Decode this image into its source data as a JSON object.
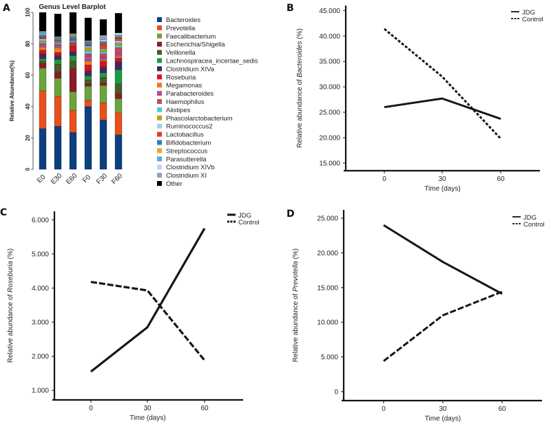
{
  "chart_data": [
    {
      "panel": "A",
      "type": "bar",
      "stacked": true,
      "title": "Genus Level Barplot",
      "xlabel": "",
      "ylabel": "Relative Abundance(%)",
      "ylim": [
        0,
        100
      ],
      "yticks": [
        "0",
        "20",
        "40",
        "60",
        "80",
        "100"
      ],
      "categories": [
        "E0",
        "E30",
        "E60",
        "F0",
        "F30",
        "F60"
      ],
      "legend_position": "right",
      "series": [
        {
          "name": "Bacteroides",
          "color": "#0b3f7f",
          "values": [
            26,
            27.5,
            23.5,
            40,
            31.5,
            22
          ]
        },
        {
          "name": "Prevotella",
          "color": "#e8501a",
          "values": [
            24,
            19,
            14,
            4,
            11,
            14
          ]
        },
        {
          "name": "Faecalibacterium",
          "color": "#6aa43a",
          "values": [
            14.5,
            11.5,
            12,
            9,
            11,
            9
          ]
        },
        {
          "name": "Escherichia/Shigella",
          "color": "#8b1a2a",
          "values": [
            3,
            4,
            14.5,
            1.5,
            1.5,
            3
          ]
        },
        {
          "name": "Veillonella",
          "color": "#4a5a2a",
          "values": [
            1.5,
            5,
            5,
            2.5,
            3.5,
            6.5
          ]
        },
        {
          "name": "Lachnospiracea_incertae_sedis",
          "color": "#1e9a40",
          "values": [
            1.5,
            3,
            3.5,
            2.5,
            3,
            9
          ]
        },
        {
          "name": "Clostridium XIVa",
          "color": "#3d2a63",
          "values": [
            3,
            2.5,
            2.5,
            3,
            3.5,
            5
          ]
        },
        {
          "name": "Roseburia",
          "color": "#d4141e",
          "values": [
            2.5,
            2,
            4,
            4,
            4,
            2.5
          ]
        },
        {
          "name": "Megamonas",
          "color": "#ef7a22",
          "values": [
            2,
            3,
            0.5,
            2.5,
            1,
            1
          ]
        },
        {
          "name": "Parabacteroides",
          "color": "#b14ca0",
          "values": [
            1.5,
            1.5,
            0.5,
            3,
            1.5,
            2
          ]
        },
        {
          "name": "Haemophilus",
          "color": "#c9475e",
          "values": [
            0.5,
            0.5,
            0.5,
            1.5,
            2,
            3.5
          ]
        },
        {
          "name": "Alistipes",
          "color": "#5ec3d8",
          "values": [
            1,
            1,
            0.5,
            2,
            1.5,
            1.5
          ]
        },
        {
          "name": "Phascolarctobacterium",
          "color": "#bfa21a",
          "values": [
            1,
            0.5,
            0.5,
            2,
            1.5,
            1.5
          ]
        },
        {
          "name": "Ruminococcus2",
          "color": "#a9cde8",
          "values": [
            1,
            0.5,
            0.5,
            1,
            0.5,
            1.5
          ]
        },
        {
          "name": "Lactobacillus",
          "color": "#e53a2a",
          "values": [
            1,
            0.5,
            0.5,
            0.5,
            2.5,
            1.5
          ]
        },
        {
          "name": "Bifidobacterium",
          "color": "#2a7fc0",
          "values": [
            1,
            1,
            2,
            1.5,
            1,
            0.5
          ]
        },
        {
          "name": "Streptococcus",
          "color": "#f5a21a",
          "values": [
            0.5,
            0.5,
            1,
            0.5,
            0.5,
            0.5
          ]
        },
        {
          "name": "Parasutterella",
          "color": "#5ba8e0",
          "values": [
            2,
            0.5,
            0.5,
            0.5,
            0.5,
            1
          ]
        },
        {
          "name": "Clostridium XIVb",
          "color": "#c8d2e2",
          "values": [
            0.5,
            0.5,
            0.5,
            0.5,
            1,
            1.5
          ]
        },
        {
          "name": "Clostridium XI",
          "color": "#9a9ccc",
          "values": [
            0,
            0,
            0,
            0,
            3,
            0
          ]
        },
        {
          "name": "Other",
          "color": "#000000",
          "values": [
            12,
            14.5,
            13.5,
            14.5,
            10,
            12.5
          ]
        }
      ]
    },
    {
      "panel": "B",
      "type": "line",
      "xlabel": "Time (days)",
      "ylabel_prefix": "Relative abundance of ",
      "ylabel_taxon": "Bacteroides",
      "ylabel_suffix": " (%)",
      "x": [
        0,
        30,
        60
      ],
      "xticks": [
        "0",
        "30",
        "60"
      ],
      "ylim": [
        13.5,
        46
      ],
      "yticks": [
        "15.000",
        "20.000",
        "25.000",
        "30.000",
        "35.000",
        "40.000",
        "45.000"
      ],
      "legend_position": "top-right",
      "series": [
        {
          "name": "JDG",
          "style": "solid",
          "values": [
            26.0,
            27.7,
            23.7
          ]
        },
        {
          "name": "Control",
          "style": "dashed",
          "values": [
            41.4,
            32.0,
            19.8
          ]
        }
      ]
    },
    {
      "panel": "C",
      "type": "line",
      "xlabel": "Time (days)",
      "ylabel_prefix": "Relative abundance of ",
      "ylabel_taxon": "Roseburia",
      "ylabel_suffix": " (%)",
      "x": [
        0,
        30,
        60
      ],
      "xticks": [
        "0",
        "30",
        "60"
      ],
      "ylim": [
        0.72,
        6.25
      ],
      "yticks": [
        "1.000",
        "2.000",
        "3.000",
        "4.000",
        "5.000",
        "6.000"
      ],
      "legend_position": "top-right",
      "series": [
        {
          "name": "JDG",
          "style": "solid",
          "values": [
            1.55,
            2.85,
            5.75
          ]
        },
        {
          "name": "Control",
          "style": "dashed",
          "values": [
            4.18,
            3.93,
            1.88
          ]
        }
      ]
    },
    {
      "panel": "D",
      "type": "line",
      "xlabel": "Time (days)",
      "ylabel_prefix": "Relative abundance of ",
      "ylabel_taxon": "Prevotella",
      "ylabel_suffix": " (%)",
      "x": [
        0,
        30,
        60
      ],
      "xticks": [
        "0",
        "30",
        "60"
      ],
      "ylim": [
        -1.3,
        26.2
      ],
      "yticks": [
        "0",
        "5.000",
        "10.000",
        "15.000",
        "20.000",
        "25.000"
      ],
      "legend_position": "top-right",
      "series": [
        {
          "name": "JDG",
          "style": "solid",
          "values": [
            24.0,
            18.7,
            14.1
          ]
        },
        {
          "name": "Control",
          "style": "dashed",
          "values": [
            4.4,
            11.0,
            14.4
          ]
        }
      ]
    }
  ]
}
